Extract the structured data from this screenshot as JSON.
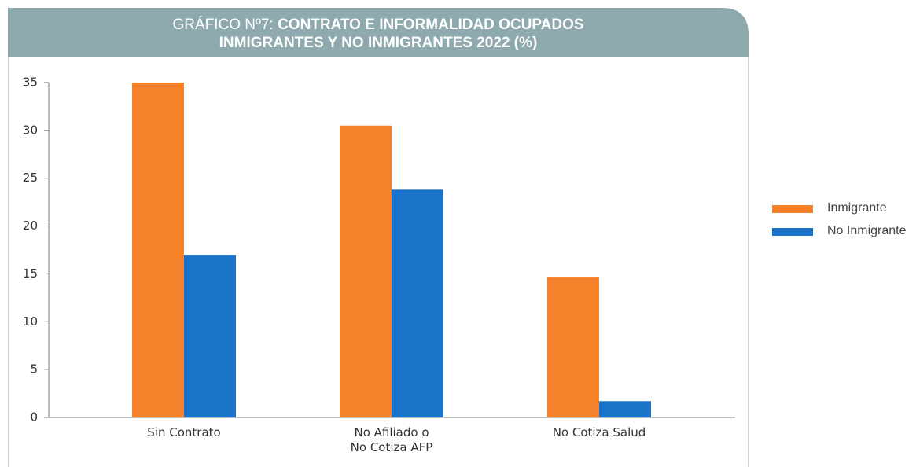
{
  "chart_data": {
    "type": "bar",
    "title": [
      "GRÁFICO Nº7:",
      "CONTRATO E INFORMALIDAD OCUPADOS",
      "INMIGRANTES Y NO INMIGRANTES 2022 (%)"
    ],
    "categories": [
      "Sin Contrato",
      "No Afiliado o\nNo Cotiza AFP",
      "No Cotiza Salud"
    ],
    "series": [
      {
        "name": "Inmigrante",
        "color": "#f5822a",
        "values": [
          35,
          30.5,
          14.7
        ]
      },
      {
        "name": "No Inmigrante",
        "color": "#1a73c8",
        "values": [
          17,
          23.8,
          1.7
        ]
      }
    ],
    "ylim": [
      0,
      35
    ],
    "yticks": [
      0,
      5,
      10,
      15,
      20,
      25,
      30,
      35
    ],
    "grid": false,
    "legend": "right"
  }
}
